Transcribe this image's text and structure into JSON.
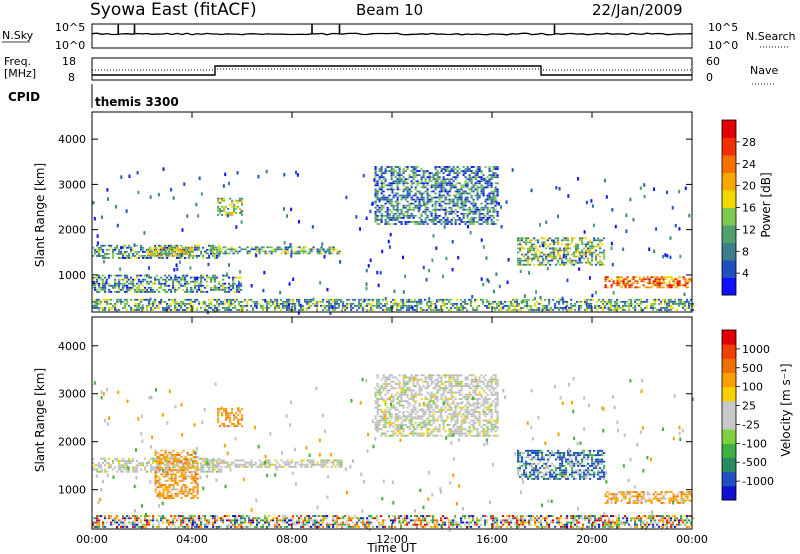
{
  "header": {
    "site": "Syowa East (fitACF)",
    "beam": "Beam 10",
    "date": "22/Jan/2009"
  },
  "aux": {
    "nsky_label": "N.Sky",
    "nsky_ticks": [
      "10^5",
      "10^0"
    ],
    "nsearch_label": "N.Search",
    "nsearch_ticks": [
      "10^5",
      "10^0"
    ],
    "freq_label": [
      "Freq.",
      "[MHz]"
    ],
    "freq_ticks": [
      "18",
      "8"
    ],
    "nave_label": "Nave",
    "nave_ticks": [
      "60",
      "0"
    ],
    "cpid_label": "CPID",
    "cpid_value": "themis 3300"
  },
  "chart_data": [
    {
      "type": "heatmap",
      "panel": "power",
      "ylabel": "Slant Range [km]",
      "xlabel": "Time UT",
      "x_ticks": [
        "00:00",
        "04:00",
        "08:00",
        "12:00",
        "16:00",
        "20:00",
        "00:00"
      ],
      "y_ticks": [
        1000,
        2000,
        3000,
        4000
      ],
      "ylim": [
        180,
        4600
      ],
      "xlim_hours": [
        0,
        24
      ],
      "colorbar": {
        "label": "Power [dB]",
        "ticks": [
          "4",
          "8",
          "12",
          "16",
          "20",
          "24",
          "28"
        ],
        "colors": [
          "#1010ff",
          "#2050c0",
          "#3c7e8a",
          "#4fa06a",
          "#7cc850",
          "#f0d800",
          "#f8a800",
          "#f87000",
          "#f03000",
          "#e00000"
        ]
      },
      "echo_bands": [
        {
          "t0": 0.0,
          "t1": 5.2,
          "r0": 1350,
          "r1": 1650,
          "level": 0.3
        },
        {
          "t0": 2.2,
          "t1": 4.0,
          "r0": 1400,
          "r1": 1600,
          "level": 0.55
        },
        {
          "t0": 4.5,
          "t1": 10.0,
          "r0": 1450,
          "r1": 1600,
          "level": 0.35
        },
        {
          "t0": 5.0,
          "t1": 6.0,
          "r0": 2300,
          "r1": 2700,
          "level": 0.45
        },
        {
          "t0": 11.3,
          "t1": 16.2,
          "r0": 2100,
          "r1": 3400,
          "level": 0.25
        },
        {
          "t0": 17.0,
          "t1": 20.5,
          "r0": 1200,
          "r1": 1800,
          "level": 0.4
        },
        {
          "t0": 20.5,
          "t1": 24.0,
          "r0": 700,
          "r1": 950,
          "level": 0.75
        },
        {
          "t0": 0.0,
          "t1": 24.0,
          "r0": 200,
          "r1": 450,
          "level": 0.35
        },
        {
          "t0": 0.0,
          "t1": 6.0,
          "r0": 600,
          "r1": 1000,
          "level": 0.3
        }
      ]
    },
    {
      "type": "heatmap",
      "panel": "velocity",
      "ylabel": "Slant Range [km]",
      "xlabel": "Time UT",
      "x_ticks": [
        "00:00",
        "04:00",
        "08:00",
        "12:00",
        "16:00",
        "20:00",
        "00:00"
      ],
      "y_ticks": [
        1000,
        2000,
        3000,
        4000
      ],
      "ylim": [
        180,
        4600
      ],
      "xlim_hours": [
        0,
        24
      ],
      "colorbar": {
        "label": "Velocity [m s⁻¹]",
        "ticks": [
          "1000",
          "500",
          "100",
          "25",
          "-25",
          "-100",
          "-500",
          "-1000"
        ],
        "colors": [
          "#1010d0",
          "#2050c0",
          "#2a8a60",
          "#40b040",
          "#80d040",
          "#c8c8c8",
          "#c8c8c8",
          "#f8d000",
          "#f8a000",
          "#f07000",
          "#f04000",
          "#e00000"
        ]
      },
      "echo_bands": [
        {
          "t0": 0.0,
          "t1": 5.2,
          "r0": 1350,
          "r1": 1650,
          "class": "grey"
        },
        {
          "t0": 2.5,
          "t1": 4.2,
          "r0": 800,
          "r1": 1800,
          "class": "orange"
        },
        {
          "t0": 4.5,
          "t1": 10.0,
          "r0": 1450,
          "r1": 1600,
          "class": "grey"
        },
        {
          "t0": 5.0,
          "t1": 6.0,
          "r0": 2300,
          "r1": 2700,
          "class": "orange"
        },
        {
          "t0": 11.3,
          "t1": 16.2,
          "r0": 2100,
          "r1": 3400,
          "class": "grey"
        },
        {
          "t0": 17.0,
          "t1": 20.5,
          "r0": 1200,
          "r1": 1800,
          "class": "blue"
        },
        {
          "t0": 20.5,
          "t1": 24.0,
          "r0": 700,
          "r1": 950,
          "class": "orange"
        },
        {
          "t0": 0.0,
          "t1": 24.0,
          "r0": 200,
          "r1": 450,
          "class": "mixed"
        }
      ]
    }
  ]
}
